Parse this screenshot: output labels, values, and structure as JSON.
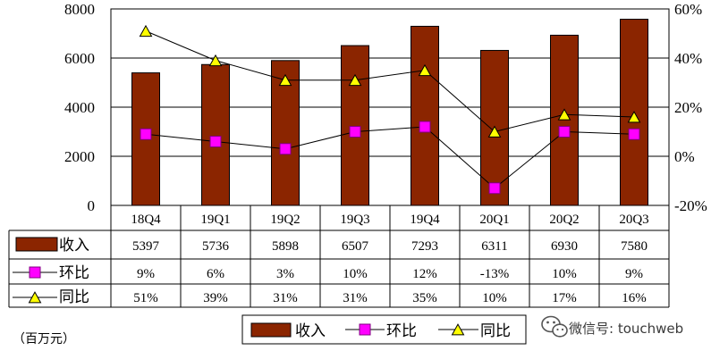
{
  "chart_data": {
    "type": "bar",
    "categories": [
      "18Q4",
      "19Q1",
      "19Q2",
      "19Q3",
      "19Q4",
      "20Q1",
      "20Q2",
      "20Q3"
    ],
    "series": [
      {
        "name": "收入",
        "kind": "bar",
        "axis": "left",
        "values": [
          5397,
          5736,
          5898,
          6507,
          7293,
          6311,
          6930,
          7580
        ],
        "labels": [
          "5397",
          "5736",
          "5898",
          "6507",
          "7293",
          "6311",
          "6930",
          "7580"
        ]
      },
      {
        "name": "环比",
        "kind": "line",
        "marker": "square",
        "axis": "right",
        "values": [
          9,
          6,
          3,
          10,
          12,
          -13,
          10,
          9
        ],
        "labels": [
          "9%",
          "6%",
          "3%",
          "10%",
          "12%",
          "-13%",
          "10%",
          "9%"
        ]
      },
      {
        "name": "同比",
        "kind": "line",
        "marker": "triangle",
        "axis": "right",
        "values": [
          51,
          39,
          31,
          31,
          35,
          10,
          17,
          16
        ],
        "labels": [
          "51%",
          "39%",
          "31%",
          "31%",
          "35%",
          "10%",
          "17%",
          "16%"
        ]
      }
    ],
    "y_left": {
      "ticks": [
        "0",
        "2000",
        "4000",
        "6000",
        "8000"
      ],
      "lim": [
        0,
        8000
      ]
    },
    "y_right": {
      "ticks": [
        "-20%",
        "0%",
        "20%",
        "40%",
        "60%"
      ],
      "lim": [
        -20,
        60
      ]
    },
    "grid": true,
    "legend_position": "bottom-center",
    "colors": {
      "bar": "#8b2500",
      "square": "#ff00ff",
      "triangle": "#ffff00",
      "line": "#000000"
    }
  },
  "unit_note": "（百万元）",
  "watermark": "微信号: touchweb"
}
